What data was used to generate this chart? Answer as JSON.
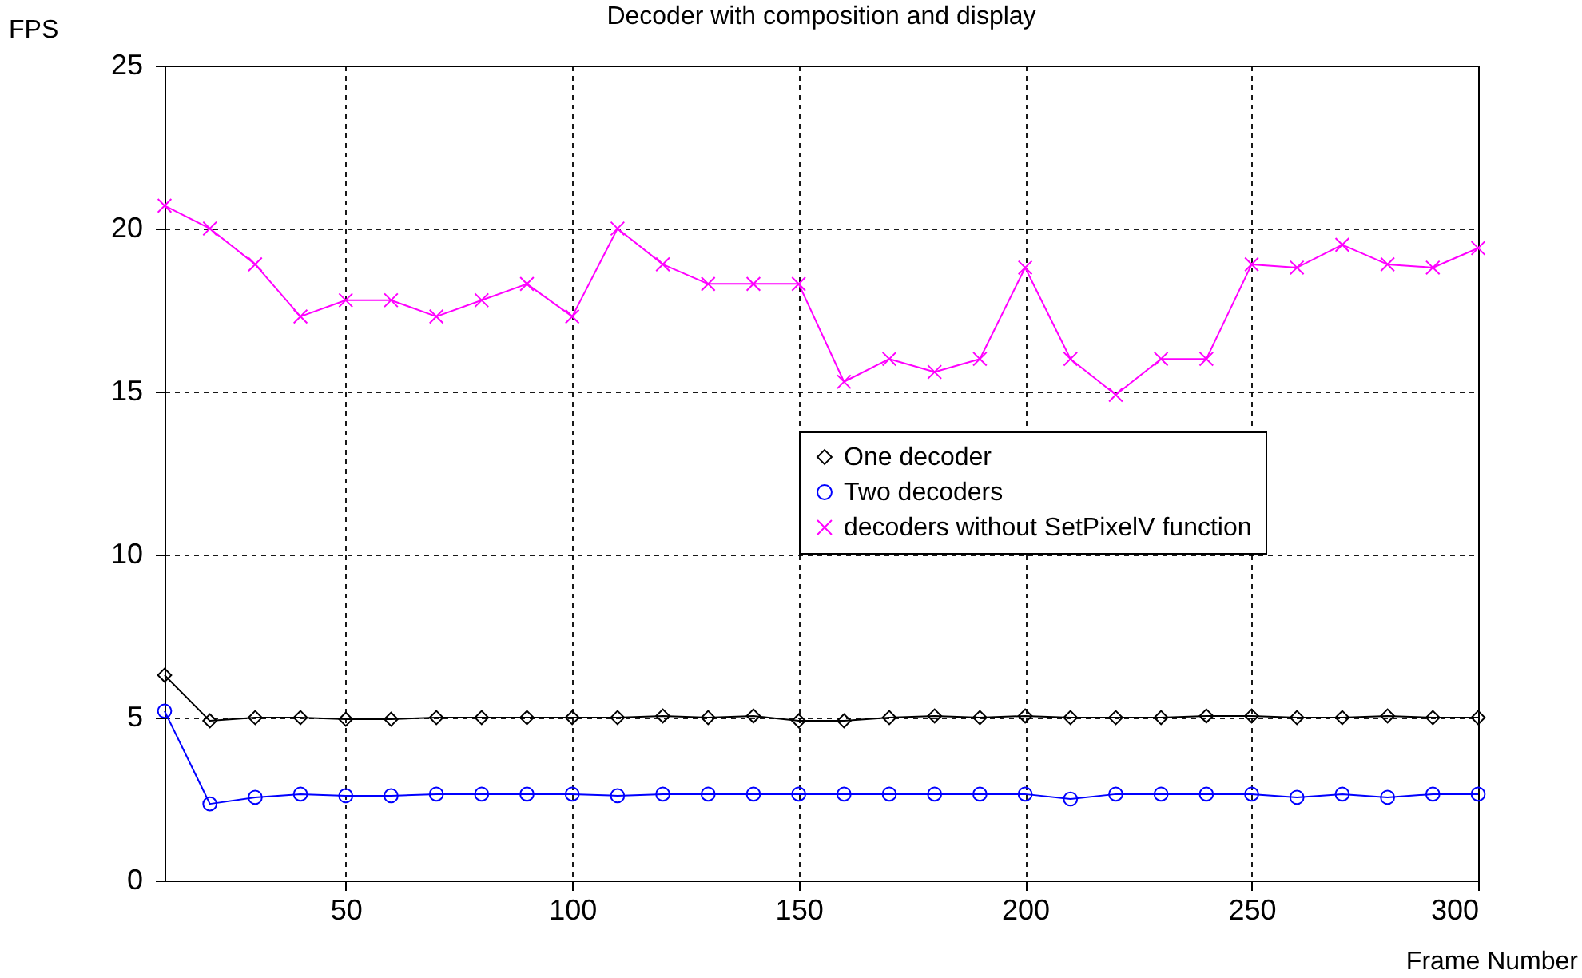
{
  "chart_data": {
    "type": "line",
    "title": "Decoder with composition and display",
    "xlabel": "Frame Number",
    "ylabel": "FPS",
    "x": [
      10,
      20,
      30,
      40,
      50,
      60,
      70,
      80,
      90,
      100,
      110,
      120,
      130,
      140,
      150,
      160,
      170,
      180,
      190,
      200,
      210,
      220,
      230,
      240,
      250,
      260,
      270,
      280,
      290,
      300
    ],
    "series": [
      {
        "name": "One decoder",
        "color": "#000000",
        "marker": "diamond",
        "values": [
          6.3,
          4.9,
          5,
          5,
          4.95,
          4.95,
          5,
          5,
          5,
          5,
          5,
          5.05,
          5,
          5.05,
          4.9,
          4.9,
          5,
          5.05,
          5,
          5.05,
          5,
          5,
          5,
          5.05,
          5.05,
          5,
          5,
          5.05,
          5,
          5
        ]
      },
      {
        "name": "Two decoders",
        "color": "#0000ff",
        "marker": "circle",
        "values": [
          5.2,
          2.35,
          2.55,
          2.65,
          2.6,
          2.6,
          2.65,
          2.65,
          2.65,
          2.65,
          2.6,
          2.65,
          2.65,
          2.65,
          2.65,
          2.65,
          2.65,
          2.65,
          2.65,
          2.65,
          2.5,
          2.65,
          2.65,
          2.65,
          2.65,
          2.55,
          2.65,
          2.55,
          2.65,
          2.65
        ]
      },
      {
        "name": "decoders without SetPixelV function",
        "color": "#ff00ff",
        "marker": "cross",
        "values": [
          20.7,
          20,
          18.9,
          17.3,
          17.8,
          17.8,
          17.3,
          17.8,
          18.3,
          17.3,
          20,
          18.9,
          18.3,
          18.3,
          18.3,
          15.3,
          16,
          15.6,
          16,
          18.8,
          16,
          14.9,
          16,
          16,
          18.9,
          18.8,
          19.5,
          18.9,
          18.8,
          19.4
        ]
      }
    ],
    "xlim": [
      10,
      300
    ],
    "xticks": [
      50,
      100,
      150,
      200,
      250,
      300
    ],
    "ylim": [
      0,
      25
    ],
    "yticks": [
      0,
      5,
      10,
      15,
      20,
      25
    ],
    "grid": true,
    "legend": "right",
    "line_style": "solid"
  }
}
